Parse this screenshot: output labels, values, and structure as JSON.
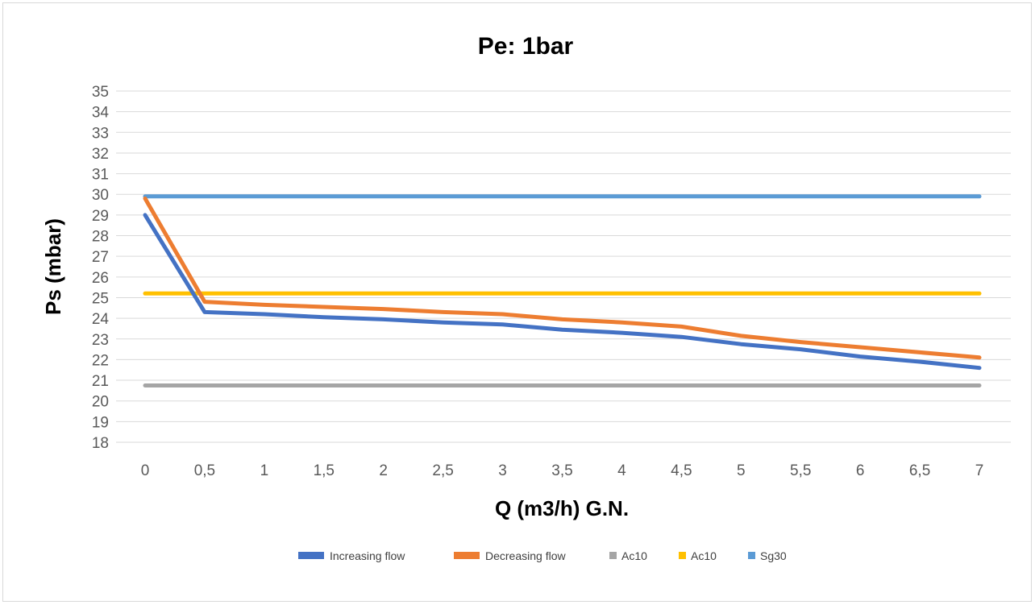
{
  "chart_data": {
    "type": "line",
    "title": "Pe: 1bar",
    "xlabel": "Q (m3/h) G.N.",
    "ylabel": "Ps (mbar)",
    "categories": [
      "0",
      "0,5",
      "1",
      "1,5",
      "2",
      "2,5",
      "3",
      "3,5",
      "4",
      "4,5",
      "5",
      "5,5",
      "6",
      "6,5",
      "7"
    ],
    "yticks": [
      18,
      19,
      20,
      21,
      22,
      23,
      24,
      25,
      26,
      27,
      28,
      29,
      30,
      31,
      32,
      33,
      34,
      35
    ],
    "ylim": [
      18,
      35
    ],
    "grid": true,
    "legend_position": "bottom",
    "series": [
      {
        "name": "Increasing flow",
        "color": "#4472c4",
        "values": [
          29.0,
          24.3,
          24.2,
          24.05,
          23.95,
          23.8,
          23.7,
          23.45,
          23.3,
          23.1,
          22.75,
          22.5,
          22.15,
          21.9,
          21.6
        ]
      },
      {
        "name": "Decreasing  flow",
        "color": "#ed7d31",
        "values": [
          29.8,
          24.8,
          24.65,
          24.55,
          24.45,
          24.3,
          24.2,
          23.95,
          23.8,
          23.6,
          23.15,
          22.85,
          22.6,
          22.35,
          22.1
        ]
      },
      {
        "name": "Ac10",
        "color": "#a5a5a5",
        "values": [
          20.75,
          20.75,
          20.75,
          20.75,
          20.75,
          20.75,
          20.75,
          20.75,
          20.75,
          20.75,
          20.75,
          20.75,
          20.75,
          20.75,
          20.75
        ]
      },
      {
        "name": "Ac10",
        "color": "#ffc000",
        "values": [
          25.2,
          25.2,
          25.2,
          25.2,
          25.2,
          25.2,
          25.2,
          25.2,
          25.2,
          25.2,
          25.2,
          25.2,
          25.2,
          25.2,
          25.2
        ]
      },
      {
        "name": "Sg30",
        "color": "#5b9bd5",
        "values": [
          29.9,
          29.9,
          29.9,
          29.9,
          29.9,
          29.9,
          29.9,
          29.9,
          29.9,
          29.9,
          29.9,
          29.9,
          29.9,
          29.9,
          29.9
        ]
      }
    ]
  }
}
